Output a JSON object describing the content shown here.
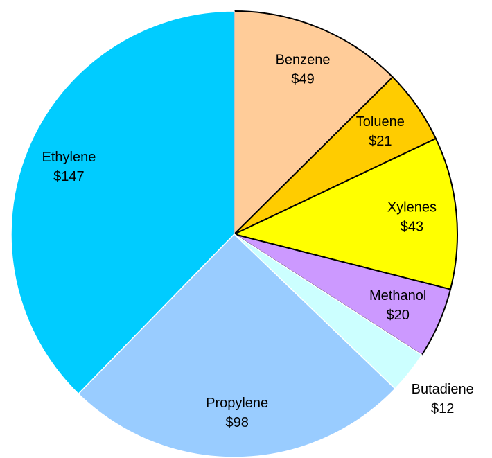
{
  "chart_data": {
    "type": "pie",
    "categories": [
      "Benzene",
      "Toluene",
      "Xylenes",
      "Methanol",
      "Butadiene",
      "Propylene",
      "Ethylene"
    ],
    "values": [
      49,
      21,
      43,
      20,
      12,
      98,
      147
    ],
    "value_labels": [
      "$49",
      "$21",
      "$43",
      "$20",
      "$12",
      "$98",
      "$147"
    ],
    "colors": [
      "#ffcc99",
      "#ffcc00",
      "#ffff00",
      "#cc99ff",
      "#ccffff",
      "#99ccff",
      "#00ccff"
    ]
  }
}
